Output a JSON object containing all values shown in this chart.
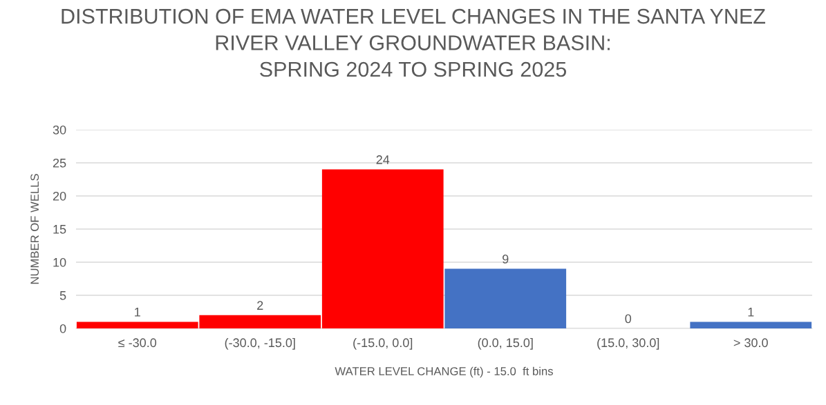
{
  "chart_data": {
    "type": "bar",
    "title": "DISTRIBUTION OF EMA WATER LEVEL CHANGES IN THE SANTA YNEZ\nRIVER VALLEY GROUNDWATER BASIN:\nSPRING 2024 TO SPRING 2025",
    "xlabel": "WATER LEVEL CHANGE (ft) - 15.0  ft bins",
    "ylabel": "NUMBER OF WELLS",
    "categories": [
      "≤ -30.0",
      "(-30.0, -15.0]",
      "(-15.0, 0.0]",
      "(0.0, 15.0]",
      "(15.0, 30.0]",
      "> 30.0"
    ],
    "values": [
      1,
      2,
      24,
      9,
      0,
      1
    ],
    "colors": [
      "#ff0000",
      "#ff0000",
      "#ff0000",
      "#4472c4",
      "#4472c4",
      "#4472c4"
    ],
    "ylim": [
      0,
      30
    ],
    "yticks": [
      0,
      5,
      10,
      15,
      20,
      25,
      30
    ],
    "grid": "y",
    "data_labels": true,
    "legend": false
  }
}
